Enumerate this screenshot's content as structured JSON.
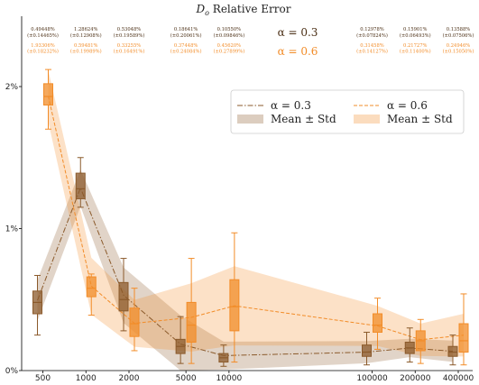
{
  "chart_data": {
    "type": "box",
    "title": "D_o Relative Error",
    "title_parts": {
      "symbol": "D",
      "subscript": "o",
      "rest": " Relative Error"
    },
    "categories": [
      "500",
      "1000",
      "2000",
      "5000",
      "10000",
      "100000",
      "200000",
      "400000"
    ],
    "x": [
      500,
      1000,
      2000,
      5000,
      10000,
      100000,
      200000,
      400000
    ],
    "x_scale": "log",
    "y_ticks": [
      "0%",
      "1%",
      "2%"
    ],
    "ylim": [
      0,
      2.5
    ],
    "series": [
      {
        "name": "α = 0.3",
        "color": "#8B5A2B",
        "style": "dash-dot",
        "annot_color": "#4a2e14",
        "mean": [
          0.49448,
          1.28624,
          0.53048,
          0.18641,
          0.1055,
          0.12978,
          0.15901,
          0.13588
        ],
        "std": [
          0.14465,
          0.12908,
          0.19589,
          0.20061,
          0.09846,
          0.07824,
          0.06493,
          0.07506
        ],
        "box": [
          {
            "whislo": 0.25,
            "q1": 0.4,
            "med": 0.48,
            "q3": 0.56,
            "whishi": 0.67
          },
          {
            "whislo": 1.15,
            "q1": 1.21,
            "med": 1.28,
            "q3": 1.39,
            "whishi": 1.5
          },
          {
            "whislo": 0.28,
            "q1": 0.42,
            "med": 0.5,
            "q3": 0.62,
            "whishi": 0.79
          },
          {
            "whislo": 0.05,
            "q1": 0.12,
            "med": 0.17,
            "q3": 0.22,
            "whishi": 0.38
          },
          {
            "whislo": 0.03,
            "q1": 0.06,
            "med": 0.09,
            "q3": 0.12,
            "whishi": 0.18
          },
          {
            "whislo": 0.04,
            "q1": 0.1,
            "med": 0.13,
            "q3": 0.18,
            "whishi": 0.27
          },
          {
            "whislo": 0.06,
            "q1": 0.12,
            "med": 0.16,
            "q3": 0.2,
            "whishi": 0.3
          },
          {
            "whislo": 0.04,
            "q1": 0.1,
            "med": 0.13,
            "q3": 0.17,
            "whishi": 0.25
          }
        ],
        "labels_mean": [
          "0.49448%",
          "1.28624%",
          "0.53048%",
          "0.18641%",
          "0.10550%",
          "0.12978%",
          "0.15901%",
          "0.13588%"
        ],
        "labels_std": [
          "(±0.14465%)",
          "(±0.12908%)",
          "(±0.19589%)",
          "(±0.20061%)",
          "(±0.09846%)",
          "(±0.07824%)",
          "(±0.06493%)",
          "(±0.07506%)"
        ]
      },
      {
        "name": "α = 0.6",
        "color": "#F28C28",
        "style": "dashed",
        "annot_color": "#F28C28",
        "mean": [
          1.93306,
          0.59481,
          0.33255,
          0.37448,
          0.4562,
          0.31458,
          0.21727,
          0.24946
        ],
        "std": [
          0.18232,
          0.19989,
          0.16491,
          0.24084,
          0.27899,
          0.14127,
          0.114,
          0.1505
        ],
        "box": [
          {
            "whislo": 1.7,
            "q1": 1.87,
            "med": 1.93,
            "q3": 2.02,
            "whishi": 2.12
          },
          {
            "whislo": 0.39,
            "q1": 0.52,
            "med": 0.58,
            "q3": 0.66,
            "whishi": 0.68
          },
          {
            "whislo": 0.14,
            "q1": 0.24,
            "med": 0.33,
            "q3": 0.44,
            "whishi": 0.58
          },
          {
            "whislo": 0.05,
            "q1": 0.2,
            "med": 0.32,
            "q3": 0.48,
            "whishi": 0.79
          },
          {
            "whislo": 0.06,
            "q1": 0.28,
            "med": 0.45,
            "q3": 0.64,
            "whishi": 0.97
          },
          {
            "whislo": 0.15,
            "q1": 0.27,
            "med": 0.32,
            "q3": 0.4,
            "whishi": 0.51
          },
          {
            "whislo": 0.05,
            "q1": 0.14,
            "med": 0.21,
            "q3": 0.28,
            "whishi": 0.36
          },
          {
            "whislo": 0.04,
            "q1": 0.13,
            "med": 0.21,
            "q3": 0.33,
            "whishi": 0.54
          }
        ],
        "labels_mean": [
          "1.93306%",
          "0.59481%",
          "0.33255%",
          "0.37448%",
          "0.45620%",
          "0.31458%",
          "0.21727%",
          "0.24946%"
        ],
        "labels_std": [
          "(±0.18232%)",
          "(±0.19989%)",
          "(±0.16491%)",
          "(±0.24084%)",
          "(±0.27899%)",
          "(±0.14127%)",
          "(±0.11400%)",
          "(±0.15050%)"
        ]
      }
    ],
    "alpha_labels": [
      "α = 0.3",
      "α = 0.6"
    ],
    "legend": {
      "placement": "upper-right",
      "entries": [
        "α = 0.3",
        "α = 0.6",
        "Mean ± Std",
        "Mean ± Std"
      ]
    },
    "grid": false
  }
}
